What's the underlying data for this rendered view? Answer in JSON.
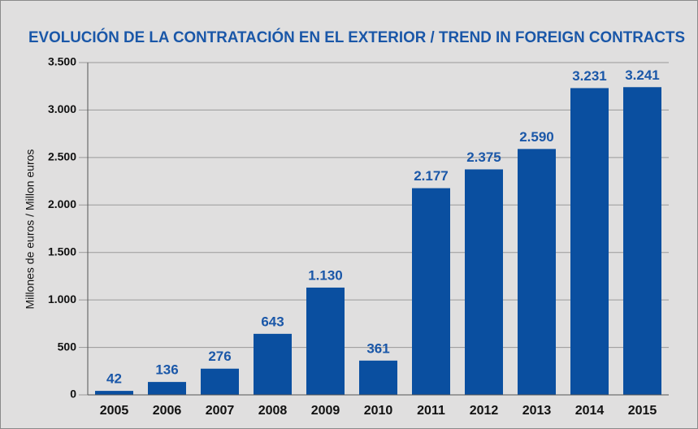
{
  "chart_data": {
    "type": "bar",
    "title": "EVOLUCIÓN DE LA CONTRATACIÓN EN EL EXTERIOR / TREND IN FOREIGN CONTRACTS",
    "y_label": "Millones de euros / Millon euros",
    "categories": [
      "2005",
      "2006",
      "2007",
      "2008",
      "2009",
      "2010",
      "2011",
      "2012",
      "2013",
      "2014",
      "2015"
    ],
    "values": [
      42,
      136,
      276,
      643,
      1130,
      361,
      2177,
      2375,
      2590,
      3231,
      3241
    ],
    "value_labels": [
      "42",
      "136",
      "276",
      "643",
      "1.130",
      "361",
      "2.177",
      "2.375",
      "2.590",
      "3.231",
      "3.241"
    ],
    "color": "#0a4fa0",
    "ylim": [
      0,
      3500
    ],
    "yticks": [
      0,
      500,
      {
        "value": 1000,
        "label": "1.000"
      },
      {
        "value": 1500,
        "label": "1.500"
      },
      {
        "value": 2000,
        "label": "2.000"
      },
      {
        "value": 2500,
        "label": "2.500"
      },
      {
        "value": 3000,
        "label": "3.000"
      },
      {
        "value": 3500,
        "label": "3.500"
      }
    ],
    "grid": true
  }
}
